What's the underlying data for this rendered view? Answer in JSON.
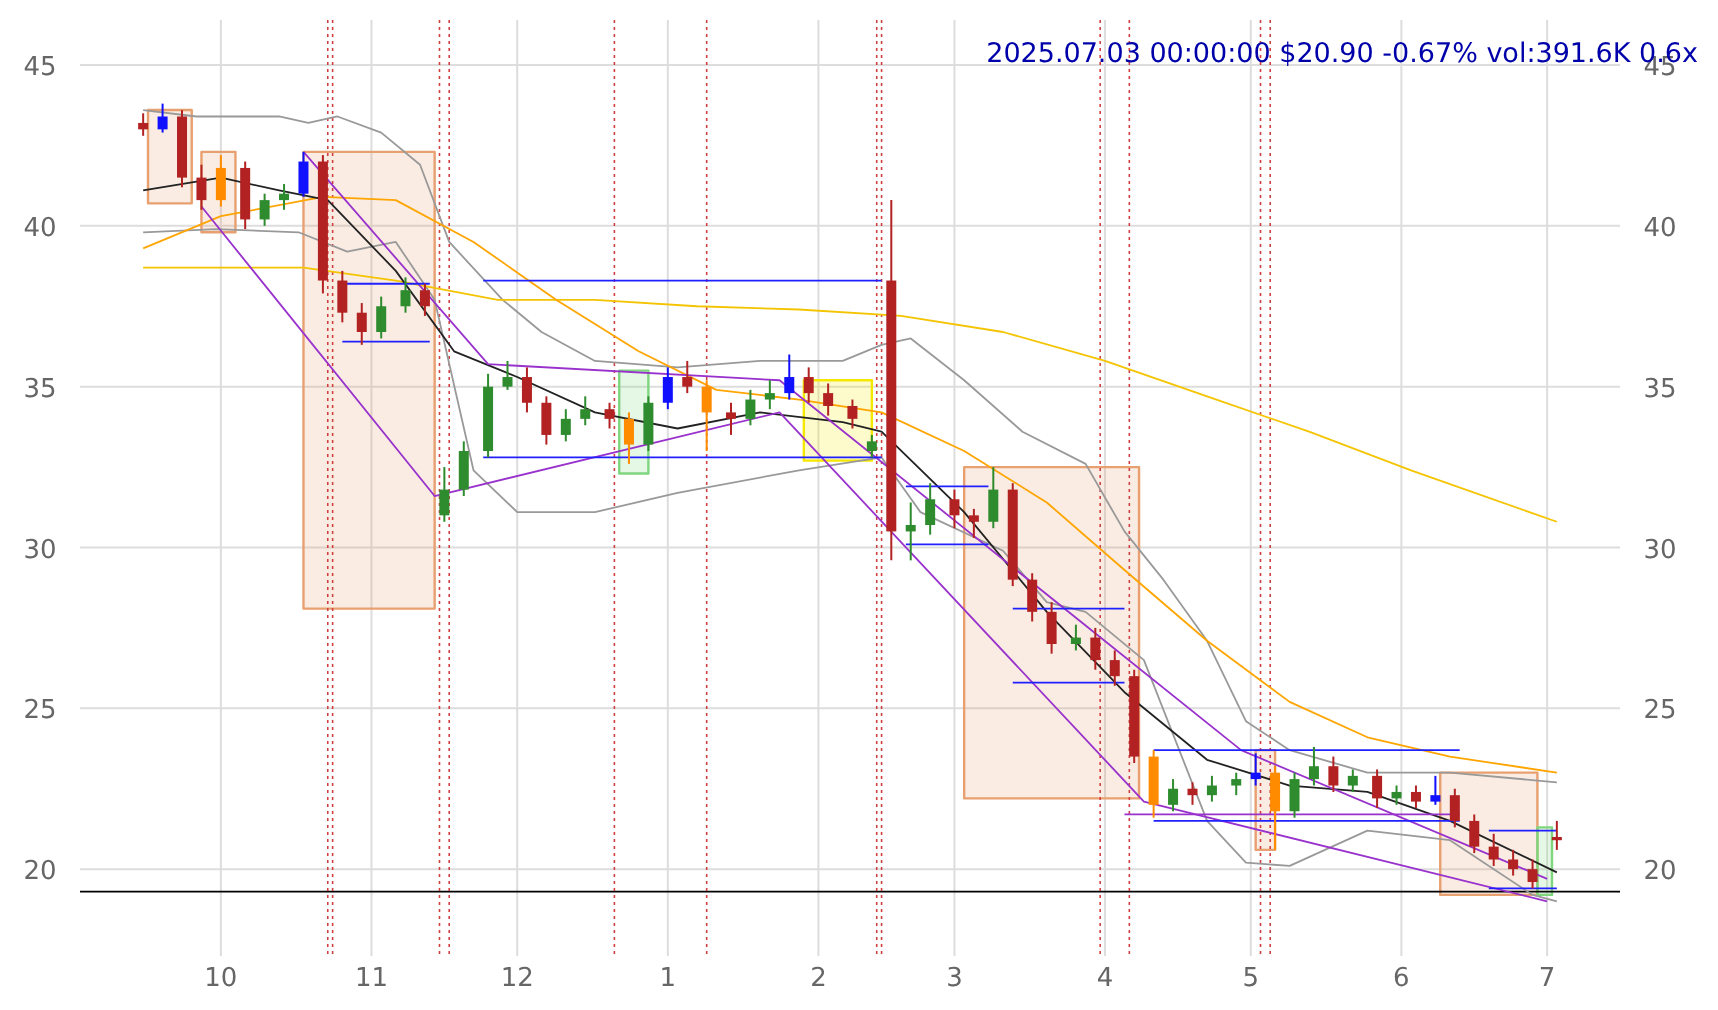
{
  "chart_data": {
    "type": "candlestick",
    "x": [
      "2024-09-15",
      "2024-09-19",
      "2024-09-23",
      "2024-09-27",
      "2024-10-01",
      "2024-10-06",
      "2024-10-10",
      "2024-10-14",
      "2024-10-18",
      "2024-10-22",
      "2024-10-26",
      "2024-10-30",
      "2024-11-03",
      "2024-11-08",
      "2024-11-12",
      "2024-11-16",
      "2024-11-20",
      "2024-11-25",
      "2024-11-29",
      "2024-12-03",
      "2024-12-07",
      "2024-12-11",
      "2024-12-15",
      "2024-12-20",
      "2024-12-24",
      "2024-12-28",
      "2025-01-01",
      "2025-01-05",
      "2025-01-09",
      "2025-01-14",
      "2025-01-18",
      "2025-01-22",
      "2025-01-26",
      "2025-01-30",
      "2025-02-03",
      "2025-02-08",
      "2025-02-12",
      "2025-02-16",
      "2025-02-20",
      "2025-02-24",
      "2025-03-01",
      "2025-03-05",
      "2025-03-09",
      "2025-03-13",
      "2025-03-17",
      "2025-03-21",
      "2025-03-26",
      "2025-03-30",
      "2025-04-03",
      "2025-04-07",
      "2025-04-11",
      "2025-04-15",
      "2025-04-19",
      "2025-04-23",
      "2025-04-28",
      "2025-05-02",
      "2025-05-06",
      "2025-05-10",
      "2025-05-14",
      "2025-05-18",
      "2025-05-22",
      "2025-05-27",
      "2025-05-31",
      "2025-06-04",
      "2025-06-08",
      "2025-06-12",
      "2025-06-16",
      "2025-06-20",
      "2025-06-24",
      "2025-06-28",
      "2025-07-03"
    ],
    "ohlc": [
      [
        43.2,
        43.5,
        42.8,
        43.0
      ],
      [
        43.0,
        43.8,
        42.9,
        43.4
      ],
      [
        43.4,
        43.6,
        41.2,
        41.5
      ],
      [
        41.5,
        41.9,
        40.5,
        40.8
      ],
      [
        40.8,
        42.2,
        40.6,
        41.8
      ],
      [
        41.8,
        42.0,
        39.9,
        40.2
      ],
      [
        40.2,
        41.0,
        40.0,
        40.8
      ],
      [
        40.8,
        41.3,
        40.5,
        41.0
      ],
      [
        41.0,
        42.3,
        40.9,
        42.0
      ],
      [
        42.0,
        42.2,
        37.9,
        38.3
      ],
      [
        38.3,
        38.6,
        37.0,
        37.3
      ],
      [
        37.3,
        37.6,
        36.3,
        36.7
      ],
      [
        36.7,
        37.8,
        36.5,
        37.5
      ],
      [
        37.5,
        38.4,
        37.3,
        38.0
      ],
      [
        38.0,
        38.2,
        37.2,
        37.5
      ],
      [
        31.0,
        32.5,
        30.8,
        31.8
      ],
      [
        31.8,
        33.3,
        31.6,
        33.0
      ],
      [
        33.0,
        35.4,
        32.8,
        35.0
      ],
      [
        35.0,
        35.8,
        34.9,
        35.3
      ],
      [
        35.3,
        35.6,
        34.2,
        34.5
      ],
      [
        34.5,
        34.7,
        33.2,
        33.5
      ],
      [
        33.5,
        34.3,
        33.3,
        34.0
      ],
      [
        34.0,
        34.7,
        33.8,
        34.3
      ],
      [
        34.3,
        34.5,
        33.7,
        34.0
      ],
      [
        34.0,
        34.2,
        32.6,
        33.2
      ],
      [
        33.2,
        34.7,
        33.0,
        34.5
      ],
      [
        34.5,
        35.6,
        34.3,
        35.3
      ],
      [
        35.3,
        35.8,
        34.8,
        35.0
      ],
      [
        35.0,
        35.2,
        33.0,
        34.2
      ],
      [
        34.2,
        34.5,
        33.5,
        34.0
      ],
      [
        34.0,
        34.9,
        33.8,
        34.6
      ],
      [
        34.6,
        35.2,
        34.3,
        34.8
      ],
      [
        34.8,
        36.0,
        34.6,
        35.3
      ],
      [
        35.3,
        35.6,
        34.5,
        34.8
      ],
      [
        34.8,
        35.1,
        34.1,
        34.4
      ],
      [
        34.4,
        34.6,
        33.7,
        34.0
      ],
      [
        33.0,
        33.5,
        32.8,
        33.3
      ],
      [
        38.3,
        40.8,
        29.6,
        30.5
      ],
      [
        30.5,
        31.4,
        29.6,
        30.7
      ],
      [
        30.7,
        32.0,
        30.4,
        31.5
      ],
      [
        31.5,
        31.8,
        30.6,
        31.0
      ],
      [
        31.0,
        31.2,
        30.3,
        30.8
      ],
      [
        30.8,
        32.5,
        30.6,
        31.8
      ],
      [
        31.8,
        32.0,
        28.8,
        29.0
      ],
      [
        29.0,
        29.2,
        27.7,
        28.0
      ],
      [
        28.0,
        28.3,
        26.7,
        27.0
      ],
      [
        27.0,
        27.6,
        26.8,
        27.2
      ],
      [
        27.2,
        27.5,
        26.2,
        26.5
      ],
      [
        26.5,
        26.8,
        25.7,
        26.0
      ],
      [
        26.0,
        26.2,
        23.3,
        23.5
      ],
      [
        23.5,
        23.7,
        21.6,
        22.0
      ],
      [
        22.0,
        22.8,
        21.8,
        22.5
      ],
      [
        22.5,
        22.7,
        22.0,
        22.3
      ],
      [
        22.3,
        22.9,
        22.1,
        22.6
      ],
      [
        22.6,
        23.0,
        22.3,
        22.8
      ],
      [
        22.8,
        23.6,
        22.6,
        23.0
      ],
      [
        23.0,
        23.2,
        20.6,
        21.8
      ],
      [
        21.8,
        23.0,
        21.6,
        22.8
      ],
      [
        22.8,
        23.8,
        22.6,
        23.2
      ],
      [
        23.2,
        23.5,
        22.4,
        22.6
      ],
      [
        22.6,
        23.1,
        22.4,
        22.9
      ],
      [
        22.9,
        23.1,
        21.9,
        22.2
      ],
      [
        22.2,
        22.6,
        22.0,
        22.4
      ],
      [
        22.4,
        22.6,
        21.9,
        22.1
      ],
      [
        22.1,
        22.9,
        22.0,
        22.3
      ],
      [
        22.3,
        22.5,
        21.3,
        21.5
      ],
      [
        21.5,
        21.7,
        20.5,
        20.7
      ],
      [
        20.7,
        21.1,
        20.1,
        20.3
      ],
      [
        20.3,
        20.6,
        19.8,
        20.0
      ],
      [
        20.0,
        20.3,
        19.4,
        19.6
      ],
      [
        21.0,
        21.5,
        20.6,
        20.9
      ]
    ],
    "colors": [
      "#b22222",
      "#1010ff",
      "#b22222",
      "#b22222",
      "#ff8c00",
      "#b22222",
      "#2e8b2e",
      "#2e8b2e",
      "#1010ff",
      "#b22222",
      "#b22222",
      "#b22222",
      "#2e8b2e",
      "#2e8b2e",
      "#b22222",
      "#2e8b2e",
      "#2e8b2e",
      "#2e8b2e",
      "#2e8b2e",
      "#b22222",
      "#b22222",
      "#2e8b2e",
      "#2e8b2e",
      "#b22222",
      "#ff8c00",
      "#2e8b2e",
      "#1010ff",
      "#b22222",
      "#ff8c00",
      "#b22222",
      "#2e8b2e",
      "#2e8b2e",
      "#1010ff",
      "#b22222",
      "#b22222",
      "#b22222",
      "#2e8b2e",
      "#b22222",
      "#2e8b2e",
      "#2e8b2e",
      "#b22222",
      "#b22222",
      "#2e8b2e",
      "#b22222",
      "#b22222",
      "#b22222",
      "#2e8b2e",
      "#b22222",
      "#b22222",
      "#b22222",
      "#ff8c00",
      "#2e8b2e",
      "#b22222",
      "#2e8b2e",
      "#2e8b2e",
      "#1010ff",
      "#ff8c00",
      "#2e8b2e",
      "#2e8b2e",
      "#b22222",
      "#2e8b2e",
      "#b22222",
      "#2e8b2e",
      "#b22222",
      "#1010ff",
      "#b22222",
      "#b22222",
      "#b22222",
      "#b22222",
      "#b22222",
      "#b22222"
    ],
    "series": [
      {
        "type": "area",
        "color": "#e8a070",
        "x": [
          "2024-09-16",
          "2024-09-16",
          "2024-09-25",
          "2024-09-25",
          "2024-09-16"
        ],
        "values": [
          40.7,
          43.6,
          43.6,
          40.7,
          40.7
        ]
      },
      {
        "type": "area",
        "color": "#e8a070",
        "x": [
          "2024-09-27",
          "2024-09-27",
          "2024-10-04",
          "2024-10-04",
          "2024-09-27"
        ],
        "values": [
          39.8,
          42.3,
          42.3,
          39.8,
          39.8
        ]
      },
      {
        "type": "area",
        "color": "#e8a070",
        "x": [
          "2024-10-18",
          "2024-10-18",
          "2024-11-14",
          "2024-11-14",
          "2024-10-18"
        ],
        "values": [
          28.1,
          42.3,
          42.3,
          28.1,
          28.1
        ]
      },
      {
        "type": "area",
        "color": "#7fd67f",
        "x": [
          "2024-12-22",
          "2024-12-22",
          "2024-12-28",
          "2024-12-28",
          "2024-12-22"
        ],
        "values": [
          32.3,
          35.5,
          35.5,
          32.3,
          32.3
        ]
      },
      {
        "type": "area",
        "color": "#f5e800",
        "x": [
          "2025-01-29",
          "2025-01-29",
          "2025-02-12",
          "2025-02-12",
          "2025-01-29"
        ],
        "values": [
          32.7,
          35.2,
          35.2,
          32.7,
          32.7
        ]
      },
      {
        "type": "area",
        "color": "#e8a070",
        "x": [
          "2025-03-03",
          "2025-03-03",
          "2025-04-08",
          "2025-04-08",
          "2025-03-03"
        ],
        "values": [
          22.2,
          32.5,
          32.5,
          22.2,
          22.2
        ]
      },
      {
        "type": "area",
        "color": "#e8a070",
        "x": [
          "2025-05-02",
          "2025-05-02",
          "2025-05-06",
          "2025-05-06",
          "2025-05-02"
        ],
        "values": [
          20.6,
          23.7,
          23.7,
          20.6,
          20.6
        ]
      },
      {
        "type": "area",
        "color": "#e8a070",
        "x": [
          "2025-06-09",
          "2025-06-09",
          "2025-06-29",
          "2025-06-29",
          "2025-06-09"
        ],
        "values": [
          19.2,
          23.0,
          23.0,
          19.2,
          19.2
        ]
      },
      {
        "type": "area",
        "color": "#7fd67f",
        "x": [
          "2025-06-29",
          "2025-06-29",
          "2025-07-02",
          "2025-07-02",
          "2025-06-29"
        ],
        "values": [
          19.2,
          21.3,
          21.3,
          19.2,
          19.2
        ]
      },
      {
        "type": "line",
        "color": "#999999",
        "x": [
          "2024-09-15",
          "2024-09-26",
          "2024-10-13",
          "2024-10-19",
          "2024-10-25",
          "2024-11-03",
          "2024-11-11",
          "2024-11-17",
          "2024-11-28",
          "2024-12-06",
          "2024-12-17",
          "2025-01-03",
          "2025-01-20",
          "2025-02-06",
          "2025-02-14",
          "2025-02-20",
          "2025-03-03",
          "2025-03-15",
          "2025-03-28",
          "2025-04-05",
          "2025-04-13",
          "2025-04-22",
          "2025-04-30",
          "2025-05-09",
          "2025-05-25",
          "2025-06-11",
          "2025-07-03"
        ],
        "values": [
          43.6,
          43.4,
          43.4,
          43.2,
          43.4,
          42.9,
          41.9,
          39.5,
          37.7,
          36.7,
          35.8,
          35.6,
          35.8,
          35.8,
          36.3,
          36.5,
          35.2,
          33.6,
          32.6,
          30.5,
          29.0,
          27.1,
          24.6,
          23.7,
          23.0,
          23.0,
          22.7
        ]
      },
      {
        "type": "line",
        "color": "#999999",
        "x": [
          "2024-09-15",
          "2024-09-30",
          "2024-10-17",
          "2024-10-27",
          "2024-11-06",
          "2024-11-14",
          "2024-11-22",
          "2024-12-01",
          "2024-12-17",
          "2025-01-03",
          "2025-01-28",
          "2025-02-14",
          "2025-02-22",
          "2025-03-11",
          "2025-03-20",
          "2025-03-28",
          "2025-04-09",
          "2025-04-22",
          "2025-04-30",
          "2025-05-09",
          "2025-05-25",
          "2025-06-11",
          "2025-06-28",
          "2025-07-03"
        ],
        "values": [
          39.8,
          39.9,
          39.8,
          39.2,
          39.5,
          37.7,
          32.4,
          31.1,
          31.1,
          31.7,
          32.4,
          32.8,
          31.1,
          29.9,
          28.3,
          28.0,
          26.5,
          21.5,
          20.2,
          20.1,
          21.2,
          20.9,
          19.2,
          19.0
        ]
      },
      {
        "type": "line",
        "color": "#f5c400",
        "x": [
          "2024-09-15",
          "2024-10-18",
          "2024-11-06",
          "2024-11-27",
          "2024-12-17",
          "2025-01-07",
          "2025-01-28",
          "2025-02-18",
          "2025-03-11",
          "2025-04-01",
          "2025-04-22",
          "2025-05-13",
          "2025-06-03",
          "2025-07-03"
        ],
        "values": [
          38.7,
          38.7,
          38.3,
          37.7,
          37.7,
          37.5,
          37.4,
          37.2,
          36.7,
          35.8,
          34.7,
          33.6,
          32.4,
          30.8
        ]
      },
      {
        "type": "line",
        "color": "#ffa500",
        "x": [
          "2024-09-15",
          "2024-10-01",
          "2024-10-22",
          "2024-11-06",
          "2024-11-22",
          "2024-12-09",
          "2024-12-26",
          "2025-01-11",
          "2025-01-28",
          "2025-02-14",
          "2025-03-03",
          "2025-03-20",
          "2025-04-05",
          "2025-04-22",
          "2025-05-09",
          "2025-05-25",
          "2025-06-11",
          "2025-07-03"
        ],
        "values": [
          39.3,
          40.3,
          40.9,
          40.8,
          39.5,
          37.7,
          36.1,
          34.9,
          34.6,
          34.2,
          33.0,
          31.4,
          29.3,
          27.1,
          25.2,
          24.1,
          23.5,
          23.0
        ]
      },
      {
        "type": "line",
        "color": "#222222",
        "x": [
          "2024-09-15",
          "2024-10-01",
          "2024-10-13",
          "2024-10-23",
          "2024-11-06",
          "2024-11-18",
          "2024-12-01",
          "2024-12-17",
          "2025-01-03",
          "2025-01-20",
          "2025-02-06",
          "2025-02-14",
          "2025-03-03",
          "2025-03-20",
          "2025-04-05",
          "2025-04-22",
          "2025-05-09",
          "2025-05-25",
          "2025-06-11",
          "2025-07-03"
        ],
        "values": [
          41.1,
          41.5,
          41.1,
          40.8,
          38.6,
          36.1,
          35.3,
          34.2,
          33.7,
          34.2,
          33.9,
          33.6,
          31.1,
          28.0,
          25.5,
          23.4,
          22.6,
          22.4,
          21.5,
          19.9
        ]
      },
      {
        "type": "line",
        "color": "#9932cc",
        "x": [
          "2024-09-27",
          "2024-11-14",
          "2025-01-24",
          "2025-04-09",
          "2025-07-01"
        ],
        "values": [
          40.6,
          31.6,
          34.2,
          22.1,
          19.0
        ]
      },
      {
        "type": "line",
        "color": "#9932cc",
        "x": [
          "2024-10-18",
          "2024-11-25",
          "2025-01-24",
          "2025-04-29",
          "2025-07-01"
        ],
        "values": [
          42.3,
          35.7,
          35.2,
          23.7,
          19.7
        ]
      },
      {
        "type": "line",
        "color": "#9932cc",
        "x": [
          "2025-04-05",
          "2025-06-13"
        ],
        "values": [
          21.7,
          21.7
        ]
      },
      {
        "type": "line",
        "color": "#2020ff",
        "x": [
          "2024-10-26",
          "2024-11-13"
        ],
        "values": [
          38.2,
          38.2
        ]
      },
      {
        "type": "line",
        "color": "#2020ff",
        "x": [
          "2024-10-26",
          "2024-11-13"
        ],
        "values": [
          36.4,
          36.4
        ]
      },
      {
        "type": "line",
        "color": "#2020ff",
        "x": [
          "2024-11-24",
          "2025-02-14"
        ],
        "values": [
          38.3,
          38.3
        ]
      },
      {
        "type": "line",
        "color": "#2020ff",
        "x": [
          "2024-11-24",
          "2025-02-14"
        ],
        "values": [
          32.8,
          32.8
        ]
      },
      {
        "type": "line",
        "color": "#2020ff",
        "x": [
          "2025-02-19",
          "2025-03-08"
        ],
        "values": [
          31.9,
          31.9
        ]
      },
      {
        "type": "line",
        "color": "#2020ff",
        "x": [
          "2025-02-19",
          "2025-03-08"
        ],
        "values": [
          30.1,
          30.1
        ]
      },
      {
        "type": "line",
        "color": "#2020ff",
        "x": [
          "2025-03-13",
          "2025-04-05"
        ],
        "values": [
          28.1,
          28.1
        ]
      },
      {
        "type": "line",
        "color": "#2020ff",
        "x": [
          "2025-03-13",
          "2025-04-05"
        ],
        "values": [
          25.8,
          25.8
        ]
      },
      {
        "type": "line",
        "color": "#2020ff",
        "x": [
          "2025-04-11",
          "2025-06-13"
        ],
        "values": [
          23.7,
          23.7
        ]
      },
      {
        "type": "line",
        "color": "#2020ff",
        "x": [
          "2025-04-11",
          "2025-06-13"
        ],
        "values": [
          21.5,
          21.5
        ]
      },
      {
        "type": "line",
        "color": "#2020ff",
        "x": [
          "2025-06-19",
          "2025-07-03"
        ],
        "values": [
          21.2,
          21.2
        ]
      },
      {
        "type": "line",
        "color": "#2020ff",
        "x": [
          "2025-06-19",
          "2025-07-03"
        ],
        "values": [
          19.4,
          19.4
        ]
      }
    ],
    "ref_lines": [
      {
        "axis": "y",
        "value": 19.3,
        "color": "#000000",
        "line_style": "solid"
      },
      {
        "axis": "x",
        "value": "2024-10-23",
        "color": "#d04040",
        "line_style": "dotted"
      },
      {
        "axis": "x",
        "value": "2024-10-24",
        "color": "#d04040",
        "line_style": "dotted"
      },
      {
        "axis": "x",
        "value": "2024-11-15",
        "color": "#d04040",
        "line_style": "dotted"
      },
      {
        "axis": "x",
        "value": "2024-11-17",
        "color": "#d04040",
        "line_style": "dotted"
      },
      {
        "axis": "x",
        "value": "2024-12-21",
        "color": "#d04040",
        "line_style": "dotted"
      },
      {
        "axis": "x",
        "value": "2025-01-09",
        "color": "#d04040",
        "line_style": "dotted"
      },
      {
        "axis": "x",
        "value": "2025-02-13",
        "color": "#d04040",
        "line_style": "dotted"
      },
      {
        "axis": "x",
        "value": "2025-02-14",
        "color": "#d04040",
        "line_style": "dotted"
      },
      {
        "axis": "x",
        "value": "2025-03-31",
        "color": "#d04040",
        "line_style": "dotted"
      },
      {
        "axis": "x",
        "value": "2025-04-06",
        "color": "#d04040",
        "line_style": "dotted"
      },
      {
        "axis": "x",
        "value": "2025-05-03",
        "color": "#d04040",
        "line_style": "dotted"
      },
      {
        "axis": "x",
        "value": "2025-05-05",
        "color": "#d04040",
        "line_style": "dotted"
      }
    ],
    "annotations": [
      "2025.07.03 00:00:00 $20.90 -0.67% vol:391.6K 0.6x"
    ],
    "xlim": [
      "2024-09-02",
      "2025-07-16"
    ],
    "xticks": [
      {
        "value": "2024-10-01",
        "label": "10"
      },
      {
        "value": "2024-11-01",
        "label": "11"
      },
      {
        "value": "2024-12-01",
        "label": "12"
      },
      {
        "value": "2025-01-01",
        "label": "1"
      },
      {
        "value": "2025-02-01",
        "label": "2"
      },
      {
        "value": "2025-03-01",
        "label": "3"
      },
      {
        "value": "2025-04-01",
        "label": "4"
      },
      {
        "value": "2025-05-01",
        "label": "5"
      },
      {
        "value": "2025-06-01",
        "label": "6"
      },
      {
        "value": "2025-07-01",
        "label": "7"
      }
    ],
    "ylim": [
      17.3,
      46.4
    ],
    "yticks": [
      20,
      25,
      30,
      35,
      40,
      45
    ],
    "y2lim": [
      17.3,
      46.4
    ],
    "y2ticks": [
      20,
      25,
      30,
      35,
      40,
      45
    ],
    "grid": true
  }
}
